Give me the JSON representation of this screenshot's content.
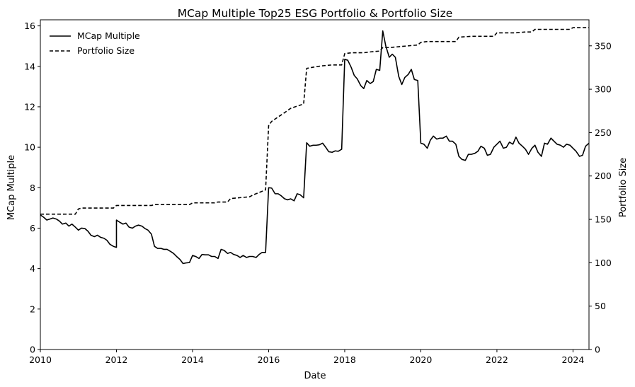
{
  "chart_data": {
    "type": "line",
    "title": "MCap Multiple Top25 ESG Portfolio & Portfolio Size",
    "xlabel": "Date",
    "ylabel_left": "MCap Multiple",
    "ylabel_right": "Portfolio Size",
    "xlim": [
      2010.0,
      2024.42
    ],
    "ylim_left": [
      0,
      16.3
    ],
    "ylim_right": [
      0,
      380
    ],
    "x_ticks": [
      2010,
      2012,
      2014,
      2016,
      2018,
      2020,
      2022,
      2024
    ],
    "y_ticks_left": [
      0,
      2,
      4,
      6,
      8,
      10,
      12,
      14,
      16
    ],
    "y_ticks_right": [
      0,
      50,
      100,
      150,
      200,
      250,
      300,
      350
    ],
    "legend_position": "top-left",
    "grid": false,
    "series": [
      {
        "name": "MCap Multiple",
        "axis": "left",
        "style": "solid",
        "color": "#000000",
        "points": [
          [
            2010.0,
            6.65
          ],
          [
            2010.08,
            6.55
          ],
          [
            2010.17,
            6.4
          ],
          [
            2010.25,
            6.45
          ],
          [
            2010.33,
            6.5
          ],
          [
            2010.42,
            6.45
          ],
          [
            2010.5,
            6.35
          ],
          [
            2010.58,
            6.2
          ],
          [
            2010.67,
            6.25
          ],
          [
            2010.75,
            6.1
          ],
          [
            2010.83,
            6.2
          ],
          [
            2010.92,
            6.05
          ],
          [
            2011.0,
            5.9
          ],
          [
            2011.08,
            6.0
          ],
          [
            2011.17,
            5.98
          ],
          [
            2011.25,
            5.85
          ],
          [
            2011.33,
            5.65
          ],
          [
            2011.42,
            5.58
          ],
          [
            2011.5,
            5.65
          ],
          [
            2011.58,
            5.55
          ],
          [
            2011.67,
            5.5
          ],
          [
            2011.75,
            5.4
          ],
          [
            2011.83,
            5.2
          ],
          [
            2011.92,
            5.1
          ],
          [
            2012.0,
            5.05
          ],
          [
            2012.0,
            6.4
          ],
          [
            2012.08,
            6.3
          ],
          [
            2012.17,
            6.2
          ],
          [
            2012.25,
            6.25
          ],
          [
            2012.33,
            6.05
          ],
          [
            2012.42,
            6.0
          ],
          [
            2012.5,
            6.1
          ],
          [
            2012.58,
            6.15
          ],
          [
            2012.67,
            6.1
          ],
          [
            2012.75,
            5.98
          ],
          [
            2012.83,
            5.9
          ],
          [
            2012.92,
            5.7
          ],
          [
            2013.0,
            5.1
          ],
          [
            2013.08,
            5.0
          ],
          [
            2013.17,
            5.0
          ],
          [
            2013.25,
            4.95
          ],
          [
            2013.33,
            4.95
          ],
          [
            2013.42,
            4.85
          ],
          [
            2013.5,
            4.75
          ],
          [
            2013.58,
            4.6
          ],
          [
            2013.67,
            4.45
          ],
          [
            2013.75,
            4.25
          ],
          [
            2013.83,
            4.28
          ],
          [
            2013.92,
            4.3
          ],
          [
            2014.0,
            4.65
          ],
          [
            2014.08,
            4.6
          ],
          [
            2014.17,
            4.5
          ],
          [
            2014.25,
            4.7
          ],
          [
            2014.33,
            4.68
          ],
          [
            2014.42,
            4.68
          ],
          [
            2014.5,
            4.6
          ],
          [
            2014.58,
            4.6
          ],
          [
            2014.67,
            4.5
          ],
          [
            2014.75,
            4.95
          ],
          [
            2014.83,
            4.9
          ],
          [
            2014.92,
            4.75
          ],
          [
            2015.0,
            4.8
          ],
          [
            2015.08,
            4.7
          ],
          [
            2015.17,
            4.65
          ],
          [
            2015.25,
            4.55
          ],
          [
            2015.33,
            4.65
          ],
          [
            2015.42,
            4.55
          ],
          [
            2015.5,
            4.6
          ],
          [
            2015.58,
            4.6
          ],
          [
            2015.67,
            4.55
          ],
          [
            2015.75,
            4.7
          ],
          [
            2015.83,
            4.8
          ],
          [
            2015.92,
            4.8
          ],
          [
            2016.0,
            8.0
          ],
          [
            2016.08,
            7.98
          ],
          [
            2016.17,
            7.7
          ],
          [
            2016.25,
            7.7
          ],
          [
            2016.33,
            7.6
          ],
          [
            2016.42,
            7.45
          ],
          [
            2016.5,
            7.4
          ],
          [
            2016.58,
            7.45
          ],
          [
            2016.67,
            7.35
          ],
          [
            2016.75,
            7.7
          ],
          [
            2016.83,
            7.65
          ],
          [
            2016.92,
            7.5
          ],
          [
            2017.0,
            10.22
          ],
          [
            2017.08,
            10.05
          ],
          [
            2017.17,
            10.1
          ],
          [
            2017.25,
            10.1
          ],
          [
            2017.33,
            10.12
          ],
          [
            2017.42,
            10.2
          ],
          [
            2017.5,
            10.0
          ],
          [
            2017.58,
            9.78
          ],
          [
            2017.67,
            9.75
          ],
          [
            2017.75,
            9.82
          ],
          [
            2017.83,
            9.8
          ],
          [
            2017.92,
            9.9
          ],
          [
            2018.0,
            14.35
          ],
          [
            2018.08,
            14.3
          ],
          [
            2018.17,
            13.95
          ],
          [
            2018.25,
            13.55
          ],
          [
            2018.33,
            13.38
          ],
          [
            2018.42,
            13.05
          ],
          [
            2018.5,
            12.9
          ],
          [
            2018.58,
            13.3
          ],
          [
            2018.67,
            13.15
          ],
          [
            2018.75,
            13.25
          ],
          [
            2018.83,
            13.85
          ],
          [
            2018.92,
            13.8
          ],
          [
            2019.0,
            15.75
          ],
          [
            2019.08,
            15.0
          ],
          [
            2019.17,
            14.45
          ],
          [
            2019.25,
            14.6
          ],
          [
            2019.33,
            14.45
          ],
          [
            2019.42,
            13.5
          ],
          [
            2019.5,
            13.1
          ],
          [
            2019.58,
            13.45
          ],
          [
            2019.67,
            13.6
          ],
          [
            2019.75,
            13.85
          ],
          [
            2019.83,
            13.35
          ],
          [
            2019.92,
            13.3
          ],
          [
            2020.0,
            10.2
          ],
          [
            2020.08,
            10.15
          ],
          [
            2020.17,
            9.95
          ],
          [
            2020.25,
            10.35
          ],
          [
            2020.33,
            10.55
          ],
          [
            2020.42,
            10.4
          ],
          [
            2020.5,
            10.45
          ],
          [
            2020.58,
            10.45
          ],
          [
            2020.67,
            10.55
          ],
          [
            2020.75,
            10.3
          ],
          [
            2020.83,
            10.3
          ],
          [
            2020.92,
            10.15
          ],
          [
            2021.0,
            9.55
          ],
          [
            2021.08,
            9.4
          ],
          [
            2021.17,
            9.35
          ],
          [
            2021.25,
            9.65
          ],
          [
            2021.33,
            9.65
          ],
          [
            2021.42,
            9.7
          ],
          [
            2021.5,
            9.8
          ],
          [
            2021.58,
            10.05
          ],
          [
            2021.67,
            9.95
          ],
          [
            2021.75,
            9.6
          ],
          [
            2021.83,
            9.65
          ],
          [
            2021.92,
            10.0
          ],
          [
            2022.0,
            10.15
          ],
          [
            2022.08,
            10.3
          ],
          [
            2022.17,
            9.95
          ],
          [
            2022.25,
            10.0
          ],
          [
            2022.33,
            10.25
          ],
          [
            2022.42,
            10.15
          ],
          [
            2022.5,
            10.5
          ],
          [
            2022.58,
            10.2
          ],
          [
            2022.67,
            10.05
          ],
          [
            2022.75,
            9.9
          ],
          [
            2022.83,
            9.65
          ],
          [
            2022.92,
            9.95
          ],
          [
            2023.0,
            10.1
          ],
          [
            2023.08,
            9.75
          ],
          [
            2023.17,
            9.55
          ],
          [
            2023.25,
            10.2
          ],
          [
            2023.33,
            10.15
          ],
          [
            2023.42,
            10.45
          ],
          [
            2023.5,
            10.3
          ],
          [
            2023.58,
            10.15
          ],
          [
            2023.67,
            10.1
          ],
          [
            2023.75,
            10.0
          ],
          [
            2023.83,
            10.15
          ],
          [
            2023.92,
            10.1
          ],
          [
            2024.0,
            9.95
          ],
          [
            2024.08,
            9.8
          ],
          [
            2024.17,
            9.55
          ],
          [
            2024.25,
            9.6
          ],
          [
            2024.33,
            10.05
          ],
          [
            2024.42,
            10.2
          ]
        ]
      },
      {
        "name": "Portfolio Size",
        "axis": "right",
        "style": "dashed",
        "color": "#000000",
        "points": [
          [
            2010.0,
            156
          ],
          [
            2010.92,
            156
          ],
          [
            2011.0,
            162
          ],
          [
            2011.08,
            163
          ],
          [
            2011.92,
            163
          ],
          [
            2012.0,
            166
          ],
          [
            2012.92,
            166
          ],
          [
            2013.0,
            167
          ],
          [
            2013.92,
            167
          ],
          [
            2014.0,
            169
          ],
          [
            2014.58,
            169
          ],
          [
            2014.67,
            170
          ],
          [
            2014.92,
            170
          ],
          [
            2015.0,
            174
          ],
          [
            2015.25,
            175
          ],
          [
            2015.5,
            176
          ],
          [
            2015.58,
            178
          ],
          [
            2015.75,
            181
          ],
          [
            2015.92,
            184
          ],
          [
            2016.0,
            258
          ],
          [
            2016.08,
            263
          ],
          [
            2016.25,
            268
          ],
          [
            2016.42,
            273
          ],
          [
            2016.58,
            278
          ],
          [
            2016.92,
            283
          ],
          [
            2017.0,
            324
          ],
          [
            2017.25,
            326
          ],
          [
            2017.42,
            327
          ],
          [
            2017.67,
            328
          ],
          [
            2017.92,
            328
          ],
          [
            2018.0,
            341
          ],
          [
            2018.17,
            342
          ],
          [
            2018.5,
            342
          ],
          [
            2018.67,
            343
          ],
          [
            2018.92,
            344
          ],
          [
            2019.0,
            348
          ],
          [
            2019.17,
            348
          ],
          [
            2019.42,
            349
          ],
          [
            2019.67,
            350
          ],
          [
            2019.92,
            351
          ],
          [
            2020.0,
            354
          ],
          [
            2020.17,
            355
          ],
          [
            2020.42,
            355
          ],
          [
            2020.92,
            355
          ],
          [
            2021.0,
            360
          ],
          [
            2021.33,
            361
          ],
          [
            2021.58,
            361
          ],
          [
            2021.92,
            361
          ],
          [
            2022.0,
            365
          ],
          [
            2022.5,
            365
          ],
          [
            2022.75,
            366
          ],
          [
            2022.92,
            366
          ],
          [
            2023.0,
            369
          ],
          [
            2023.5,
            369
          ],
          [
            2023.92,
            369
          ],
          [
            2024.0,
            371
          ],
          [
            2024.42,
            371
          ]
        ]
      }
    ]
  }
}
